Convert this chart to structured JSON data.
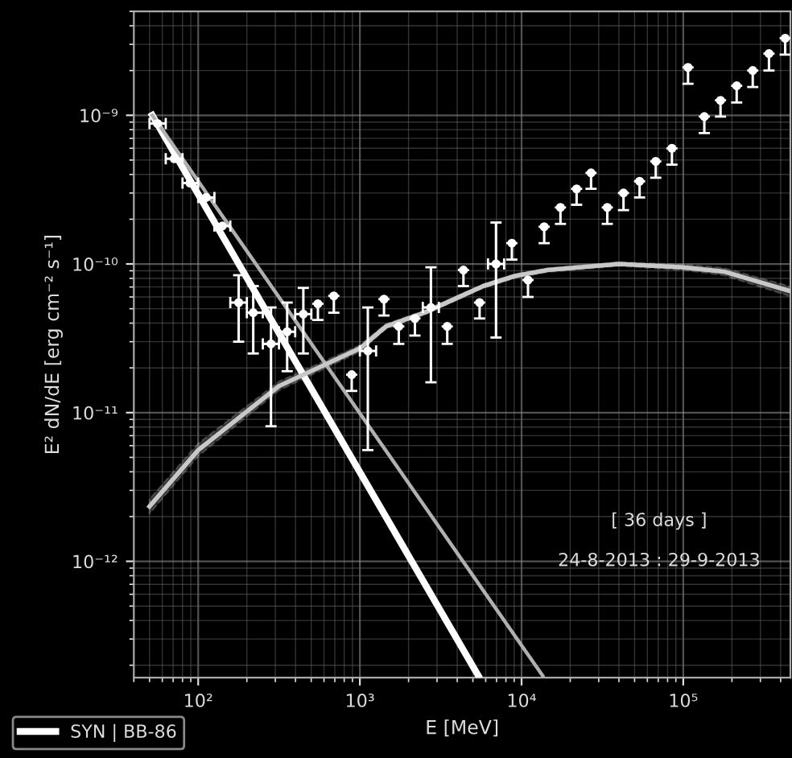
{
  "chart_data": {
    "type": "line",
    "xlabel": "E [MeV]",
    "ylabel": "E² dN/dE [erg cm⁻² s⁻¹]",
    "log": "xy",
    "grid": true,
    "legend": "bottom left",
    "xlim": [
      40,
      460000
    ],
    "ylim": [
      1.65e-13,
      5e-09
    ],
    "xticks": [
      {
        "value": 100,
        "label": "10²"
      },
      {
        "value": 1000,
        "label": "10³"
      },
      {
        "value": 10000,
        "label": "10⁴"
      },
      {
        "value": 100000,
        "label": "10⁵"
      }
    ],
    "yticks": [
      {
        "value": 1e-12,
        "label": "10⁻¹²"
      },
      {
        "value": 1e-11,
        "label": "10⁻¹¹"
      },
      {
        "value": 1e-10,
        "label": "10⁻¹⁰"
      },
      {
        "value": 1e-09,
        "label": "10⁻⁹"
      }
    ],
    "annotations": [
      "[ 36 days ]",
      "24-8-2013 : 29-9-2013"
    ],
    "series": [
      {
        "name": "SYN | BB-86",
        "color": "#ffffff",
        "x": [
          52,
          5400
        ],
        "values": [
          1e-09,
          1.7e-13
        ]
      },
      {
        "color": "#b0b0b0",
        "x": [
          52,
          13500
        ],
        "values": [
          1e-09,
          1.7e-13
        ]
      },
      {
        "color": "#c8c8c8",
        "x": [
          50,
          100,
          316,
          1000,
          1450,
          2500,
          4400,
          5800,
          9100,
          14500,
          40000,
          100000,
          178000,
          450000
        ],
        "values": [
          2.34e-12,
          5.6e-12,
          1.51e-11,
          2.7e-11,
          3.8e-11,
          4.7e-11,
          6.2e-11,
          7.1e-11,
          8.3e-11,
          9.1e-11,
          1e-10,
          9.5e-11,
          8.9e-11,
          6.6e-11
        ],
        "lower": [
          2.09e-12,
          5.1e-12,
          1.41e-11,
          2.57e-11,
          3.65e-11,
          4.55e-11,
          6e-11,
          6.9e-11,
          8.06e-11,
          8.83e-11,
          9.7e-11,
          9.1e-11,
          8.4e-11,
          6.1e-11
        ],
        "upper": [
          2.62e-12,
          6.2e-12,
          1.62e-11,
          2.84e-11,
          3.95e-11,
          4.85e-11,
          6.4e-11,
          7.3e-11,
          8.55e-11,
          9.37e-11,
          1.03e-10,
          9.9e-11,
          9.4e-11,
          7.1e-11
        ]
      },
      {
        "type": "scatter",
        "color": "#ffffff",
        "marker": "circle",
        "x": [
          56,
          71,
          89,
          112,
          141,
          178,
          219,
          282,
          355,
          447,
          1120,
          2750,
          6950
        ],
        "values": [
          8.8e-10,
          5.1e-10,
          3.5e-10,
          2.8e-10,
          1.8e-10,
          5.5e-11,
          4.7e-11,
          2.9e-11,
          3.5e-11,
          4.6e-11,
          2.6e-11,
          5.1e-11,
          1e-10
        ],
        "errors": [
          null,
          null,
          null,
          null,
          null,
          [
            3e-11,
            8.4e-11
          ],
          [
            2.5e-11,
            7.1e-11
          ],
          [
            8.1e-12,
            5.1e-11
          ],
          [
            1.9e-11,
            5.5e-11
          ],
          [
            2.5e-11,
            6.9e-11
          ],
          [
            5.6e-12,
            5.1e-11
          ],
          [
            1.6e-11,
            9.5e-11
          ],
          [
            3.2e-11,
            1.9e-10
          ]
        ],
        "xerrors": [
          [
            50,
            63
          ],
          [
            63,
            80
          ],
          [
            80,
            100
          ],
          [
            100,
            126
          ],
          [
            126,
            158
          ],
          [
            158,
            200
          ],
          [
            200,
            251
          ],
          [
            251,
            316
          ],
          [
            316,
            398
          ],
          [
            398,
            501
          ],
          [
            1000,
            1260
          ],
          [
            2450,
            3080
          ],
          [
            6200,
            7800
          ]
        ]
      },
      {
        "type": "scatter",
        "color": "#ffffff",
        "marker": "circle",
        "x": [
          550,
          690,
          890,
          1410,
          1740,
          2190,
          3470,
          4370,
          5500,
          8710,
          10960,
          13800,
          17400,
          21900,
          26900,
          33900,
          42700,
          53700,
          67600,
          85100,
          107000,
          135000,
          170000,
          214000,
          269000,
          339000,
          427000
        ],
        "values": [
          5.4e-11,
          6.1e-11,
          1.8e-11,
          5.8e-11,
          3.8e-11,
          4.3e-11,
          3.8e-11,
          9.1e-11,
          5.5e-11,
          1.38e-10,
          7.8e-11,
          1.78e-10,
          2.4e-10,
          3.2e-10,
          4.1e-10,
          2.4e-10,
          3e-10,
          3.6e-10,
          4.9e-10,
          6e-10,
          2.1e-09,
          9.8e-10,
          1.26e-09,
          1.58e-09,
          2e-09,
          2.6e-09,
          3.3e-09
        ],
        "errors": [
          [
            4.2e-11,
            5.4e-11
          ],
          [
            4.7e-11,
            6.1e-11
          ],
          [
            1.4e-11,
            1.8e-11
          ],
          [
            4.5e-11,
            5.8e-11
          ],
          [
            2.9e-11,
            3.8e-11
          ],
          [
            3.3e-11,
            4.3e-11
          ],
          [
            2.9e-11,
            3.8e-11
          ],
          [
            7.1e-11,
            9.1e-11
          ],
          [
            4.3e-11,
            5.5e-11
          ],
          [
            1.07e-10,
            1.38e-10
          ],
          [
            6e-11,
            7.8e-11
          ],
          [
            1.38e-10,
            1.78e-10
          ],
          [
            1.86e-10,
            2.4e-10
          ],
          [
            2.5e-10,
            3.2e-10
          ],
          [
            3.2e-10,
            4.1e-10
          ],
          [
            1.86e-10,
            2.4e-10
          ],
          [
            2.3e-10,
            3e-10
          ],
          [
            2.8e-10,
            3.6e-10
          ],
          [
            3.8e-10,
            4.9e-10
          ],
          [
            4.65e-10,
            6e-10
          ],
          [
            1.63e-09,
            2.1e-09
          ],
          [
            7.6e-10,
            9.8e-10
          ],
          [
            9.8e-10,
            1.26e-09
          ],
          [
            1.22e-09,
            1.58e-09
          ],
          [
            1.55e-09,
            2e-09
          ],
          [
            2e-09,
            2.6e-09
          ],
          [
            2.56e-09,
            3.3e-09
          ]
        ]
      }
    ]
  }
}
